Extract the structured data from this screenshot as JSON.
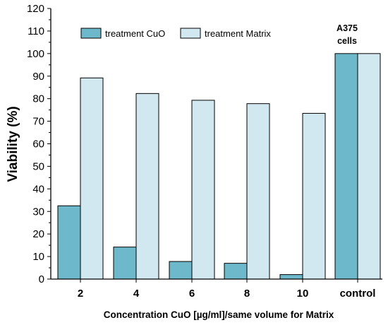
{
  "chart_data": {
    "type": "bar",
    "categories": [
      "2",
      "4",
      "6",
      "8",
      "10",
      "control"
    ],
    "series": [
      {
        "name": "treatment CuO",
        "values": [
          32.5,
          14.2,
          7.8,
          7.0,
          2.0,
          100
        ],
        "color": "#6db9cb"
      },
      {
        "name": "treatment Matrix",
        "values": [
          89.2,
          82.3,
          79.3,
          77.8,
          73.5,
          100
        ],
        "color": "#d2e8f0"
      }
    ],
    "title": "",
    "xlabel": "Concentration CuO [µg/ml]/same volume for Matrix",
    "ylabel": "Viability (%)",
    "ylim": [
      0,
      120
    ],
    "yticks": [
      "0",
      "10",
      "20",
      "30",
      "40",
      "50",
      "60",
      "70",
      "80",
      "90",
      "100",
      "110",
      "120"
    ],
    "legend": "top-left",
    "grid": false,
    "annotation": {
      "line1": "A375",
      "line2": "cells"
    }
  }
}
